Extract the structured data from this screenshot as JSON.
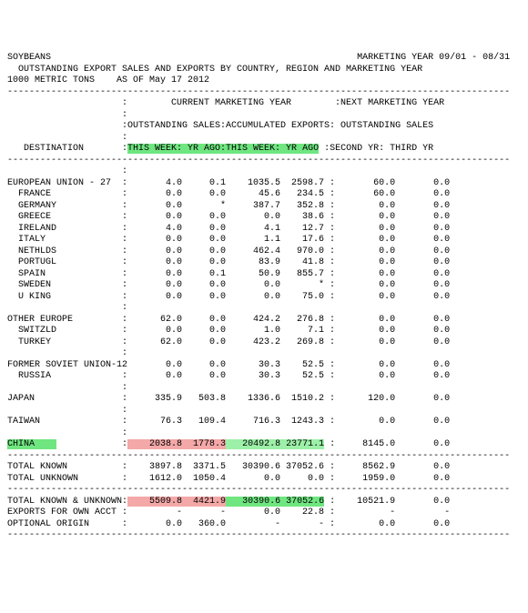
{
  "header": {
    "commodity": "SOYBEANS",
    "marketing_year": "MARKETING YEAR 09/01 - 08/31",
    "title": "OUTSTANDING EXPORT SALES AND EXPORTS BY COUNTRY, REGION AND MARKETING YEAR",
    "units": "1000 METRIC TONS",
    "as_of": "AS OF May 17 2012"
  },
  "sections": {
    "cmy": "CURRENT MARKETING YEAR",
    "nmy": "NEXT MARKETING YEAR",
    "os": "OUTSTANDING SALES",
    "ae": "ACCUMULATED EXPORTS",
    "os2": "OUTSTANDING SALES",
    "dest": "DESTINATION",
    "tw1": "THIS WEEK",
    "ya1": "YR AGO",
    "tw2": "THIS WEEK",
    "ya2": "YR AGO",
    "sy": "SECOND YR",
    "ty": "THIRD YR"
  },
  "rows": [
    {
      "d": "EUROPEAN UNION - 27",
      "v": [
        "4.0",
        "0.1",
        "1035.5",
        "2598.7",
        "60.0",
        "0.0"
      ]
    },
    {
      "d": "  FRANCE",
      "v": [
        "0.0",
        "0.0",
        "45.6",
        "234.5",
        "60.0",
        "0.0"
      ]
    },
    {
      "d": "  GERMANY",
      "v": [
        "0.0",
        "*",
        "387.7",
        "352.8",
        "0.0",
        "0.0"
      ]
    },
    {
      "d": "  GREECE",
      "v": [
        "0.0",
        "0.0",
        "0.0",
        "38.6",
        "0.0",
        "0.0"
      ]
    },
    {
      "d": "  IRELAND",
      "v": [
        "4.0",
        "0.0",
        "4.1",
        "12.7",
        "0.0",
        "0.0"
      ]
    },
    {
      "d": "  ITALY",
      "v": [
        "0.0",
        "0.0",
        "1.1",
        "17.6",
        "0.0",
        "0.0"
      ]
    },
    {
      "d": "  NETHLDS",
      "v": [
        "0.0",
        "0.0",
        "462.4",
        "970.0",
        "0.0",
        "0.0"
      ]
    },
    {
      "d": "  PORTUGL",
      "v": [
        "0.0",
        "0.0",
        "83.9",
        "41.8",
        "0.0",
        "0.0"
      ]
    },
    {
      "d": "  SPAIN",
      "v": [
        "0.0",
        "0.1",
        "50.9",
        "855.7",
        "0.0",
        "0.0"
      ]
    },
    {
      "d": "  SWEDEN",
      "v": [
        "0.0",
        "0.0",
        "0.0",
        "*",
        "0.0",
        "0.0"
      ]
    },
    {
      "d": "  U KING",
      "v": [
        "0.0",
        "0.0",
        "0.0",
        "75.0",
        "0.0",
        "0.0"
      ]
    },
    {
      "d": "",
      "v": [
        "",
        "",
        "",
        "",
        "",
        ""
      ],
      "blank": true
    },
    {
      "d": "OTHER EUROPE",
      "v": [
        "62.0",
        "0.0",
        "424.2",
        "276.8",
        "0.0",
        "0.0"
      ]
    },
    {
      "d": "  SWITZLD",
      "v": [
        "0.0",
        "0.0",
        "1.0",
        "7.1",
        "0.0",
        "0.0"
      ]
    },
    {
      "d": "  TURKEY",
      "v": [
        "62.0",
        "0.0",
        "423.2",
        "269.8",
        "0.0",
        "0.0"
      ]
    },
    {
      "d": "",
      "v": [
        "",
        "",
        "",
        "",
        "",
        ""
      ],
      "blank": true
    },
    {
      "d": "FORMER SOVIET UNION-12",
      "v": [
        "0.0",
        "0.0",
        "30.3",
        "52.5",
        "0.0",
        "0.0"
      ],
      "wide": true
    },
    {
      "d": "  RUSSIA",
      "v": [
        "0.0",
        "0.0",
        "30.3",
        "52.5",
        "0.0",
        "0.0"
      ]
    },
    {
      "d": "",
      "v": [
        "",
        "",
        "",
        "",
        "",
        ""
      ],
      "blank": true
    },
    {
      "d": "JAPAN",
      "v": [
        "335.9",
        "503.8",
        "1336.6",
        "1510.2",
        "120.0",
        "0.0"
      ]
    },
    {
      "d": "",
      "v": [
        "",
        "",
        "",
        "",
        "",
        ""
      ],
      "blank": true
    },
    {
      "d": "TAIWAN",
      "v": [
        "76.3",
        "109.4",
        "716.3",
        "1243.3",
        "0.0",
        "0.0"
      ]
    },
    {
      "d": "",
      "v": [
        "",
        "",
        "",
        "",
        "",
        ""
      ],
      "blank": true
    },
    {
      "d": "CHINA",
      "v": [
        "2038.8",
        "1778.3",
        "20492.8",
        "23771.1",
        "8145.0",
        "0.0"
      ],
      "china": true
    }
  ],
  "totals": [
    {
      "d": "TOTAL KNOWN",
      "v": [
        "3897.8",
        "3371.5",
        "30390.6",
        "37052.6",
        "8562.9",
        "0.0"
      ]
    },
    {
      "d": "TOTAL UNKNOWN",
      "v": [
        "1612.0",
        "1050.4",
        "0.0",
        "0.0",
        "1959.0",
        "0.0"
      ]
    }
  ],
  "grand": [
    {
      "d": "TOTAL KNOWN & UNKNOWN",
      "v": [
        "5509.8",
        "4421.9",
        "30390.6",
        "37052.6",
        "10521.9",
        "0.0"
      ],
      "gk": true
    },
    {
      "d": "EXPORTS FOR OWN ACCT",
      "v": [
        "-",
        "-",
        "0.0",
        "22.8",
        "-",
        "-"
      ]
    },
    {
      "d": "OPTIONAL ORIGIN",
      "v": [
        "0.0",
        "360.0",
        "-",
        "-",
        "0.0",
        "0.0"
      ]
    }
  ],
  "style": {
    "dash_char": "-",
    "hl_green": "#6fe680",
    "hl_pink": "#f4a8a8",
    "hl_lgreen": "#9cf0a7"
  }
}
